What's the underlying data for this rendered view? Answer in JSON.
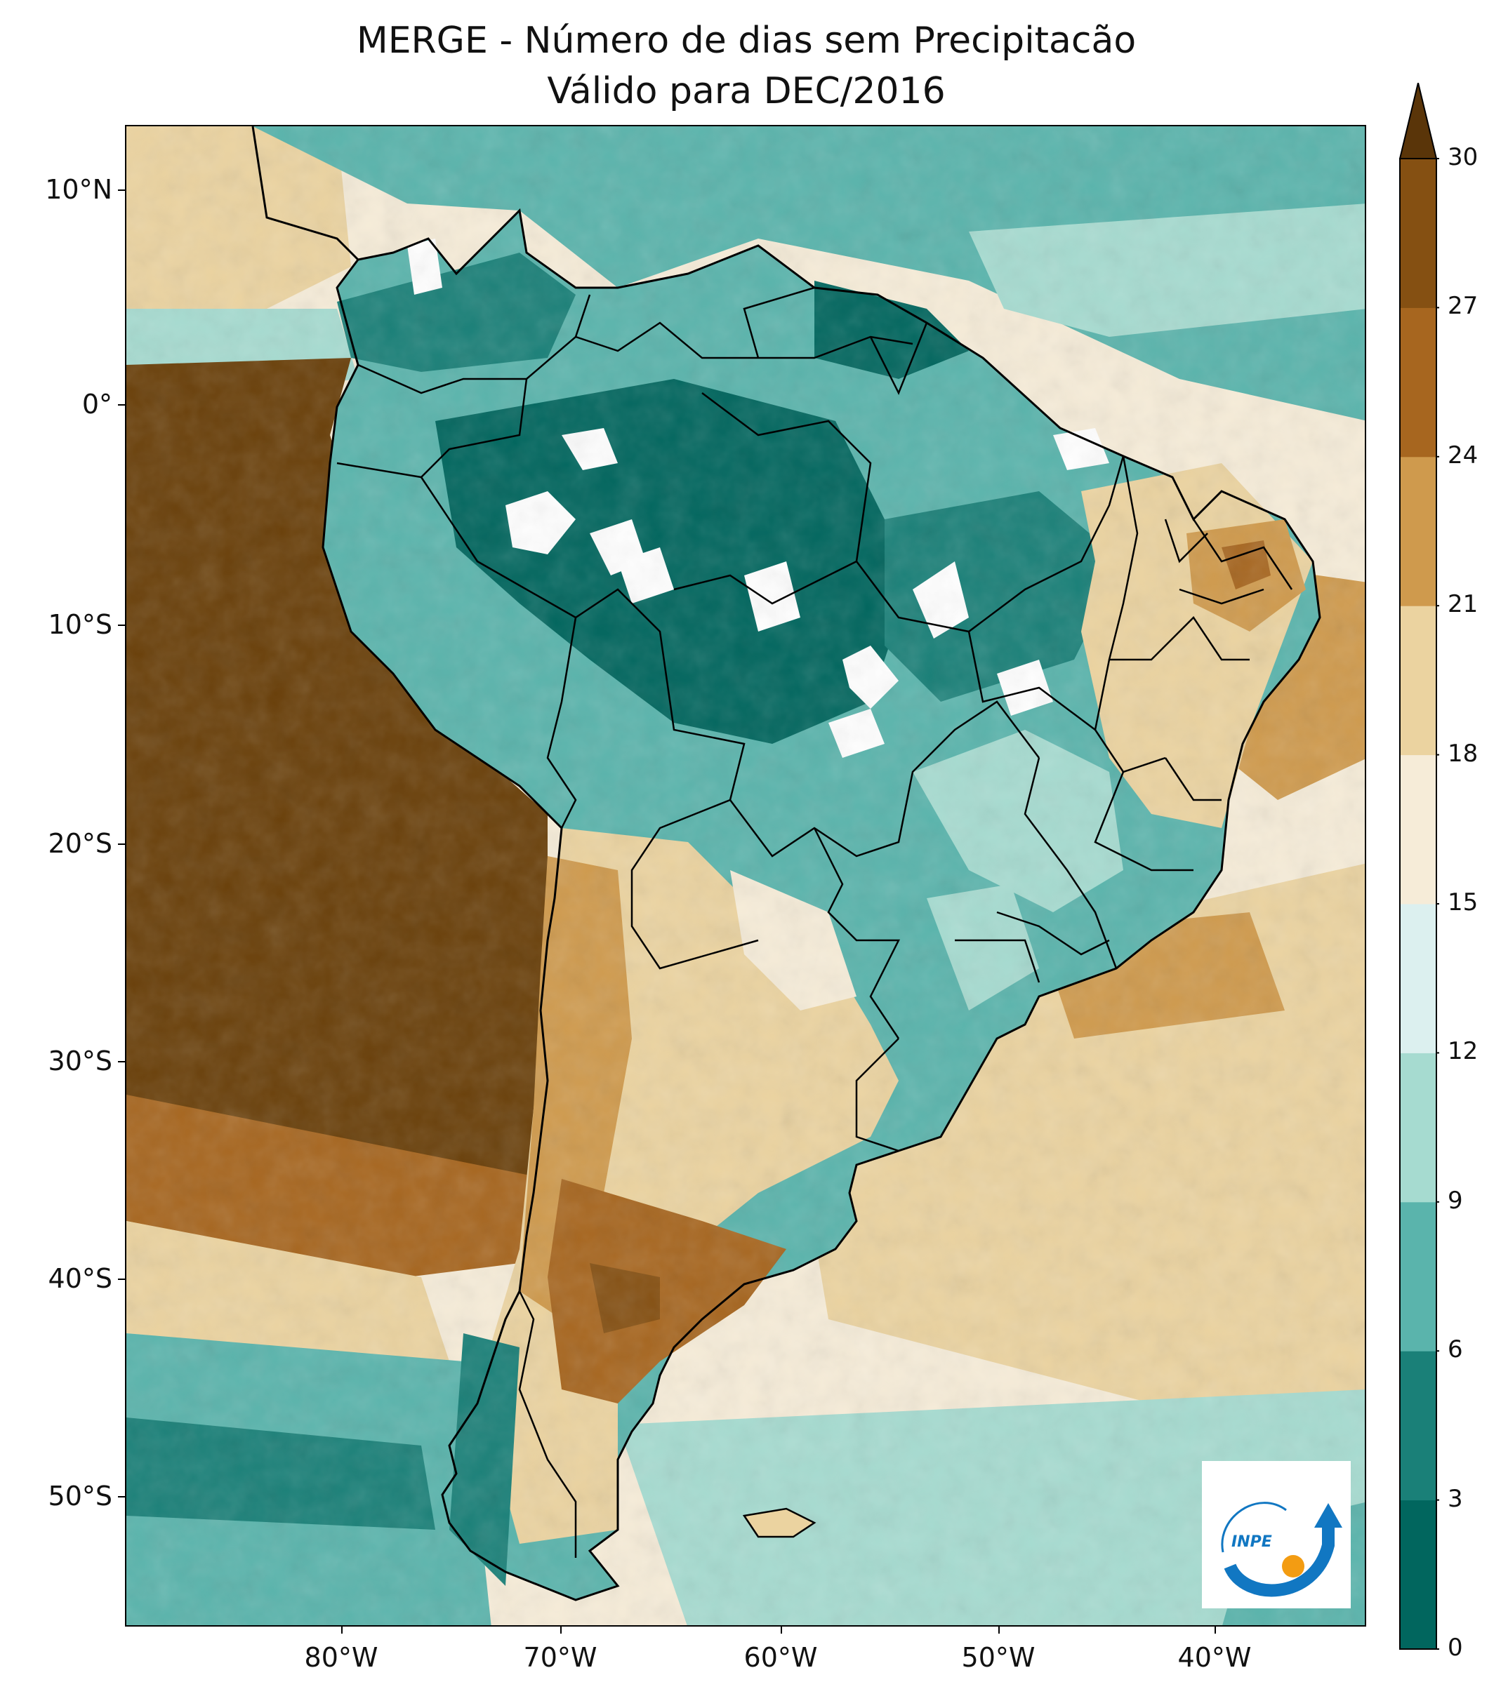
{
  "title_line1": "MERGE - Número de dias sem Precipitacão",
  "title_line2": "Válido para DEC/2016",
  "lat_labels": [
    "10°N",
    "0°",
    "10°S",
    "20°S",
    "30°S",
    "40°S",
    "50°S"
  ],
  "lon_labels": [
    "80°W",
    "70°W",
    "60°W",
    "50°W",
    "40°W"
  ],
  "colorbar": {
    "ticks": [
      "0",
      "3",
      "6",
      "9",
      "12",
      "15",
      "18",
      "21",
      "24",
      "27",
      "30"
    ],
    "colors": [
      "#01665e",
      "#1a8078",
      "#5ab4ac",
      "#a6dbd0",
      "#dcf0ef",
      "#f6ecd8",
      "#ebd3a0",
      "#cf9a4d",
      "#a7661f",
      "#855012",
      "#6a400a"
    ],
    "extend_color": "#5a3509"
  },
  "logo_text": "INPE"
}
